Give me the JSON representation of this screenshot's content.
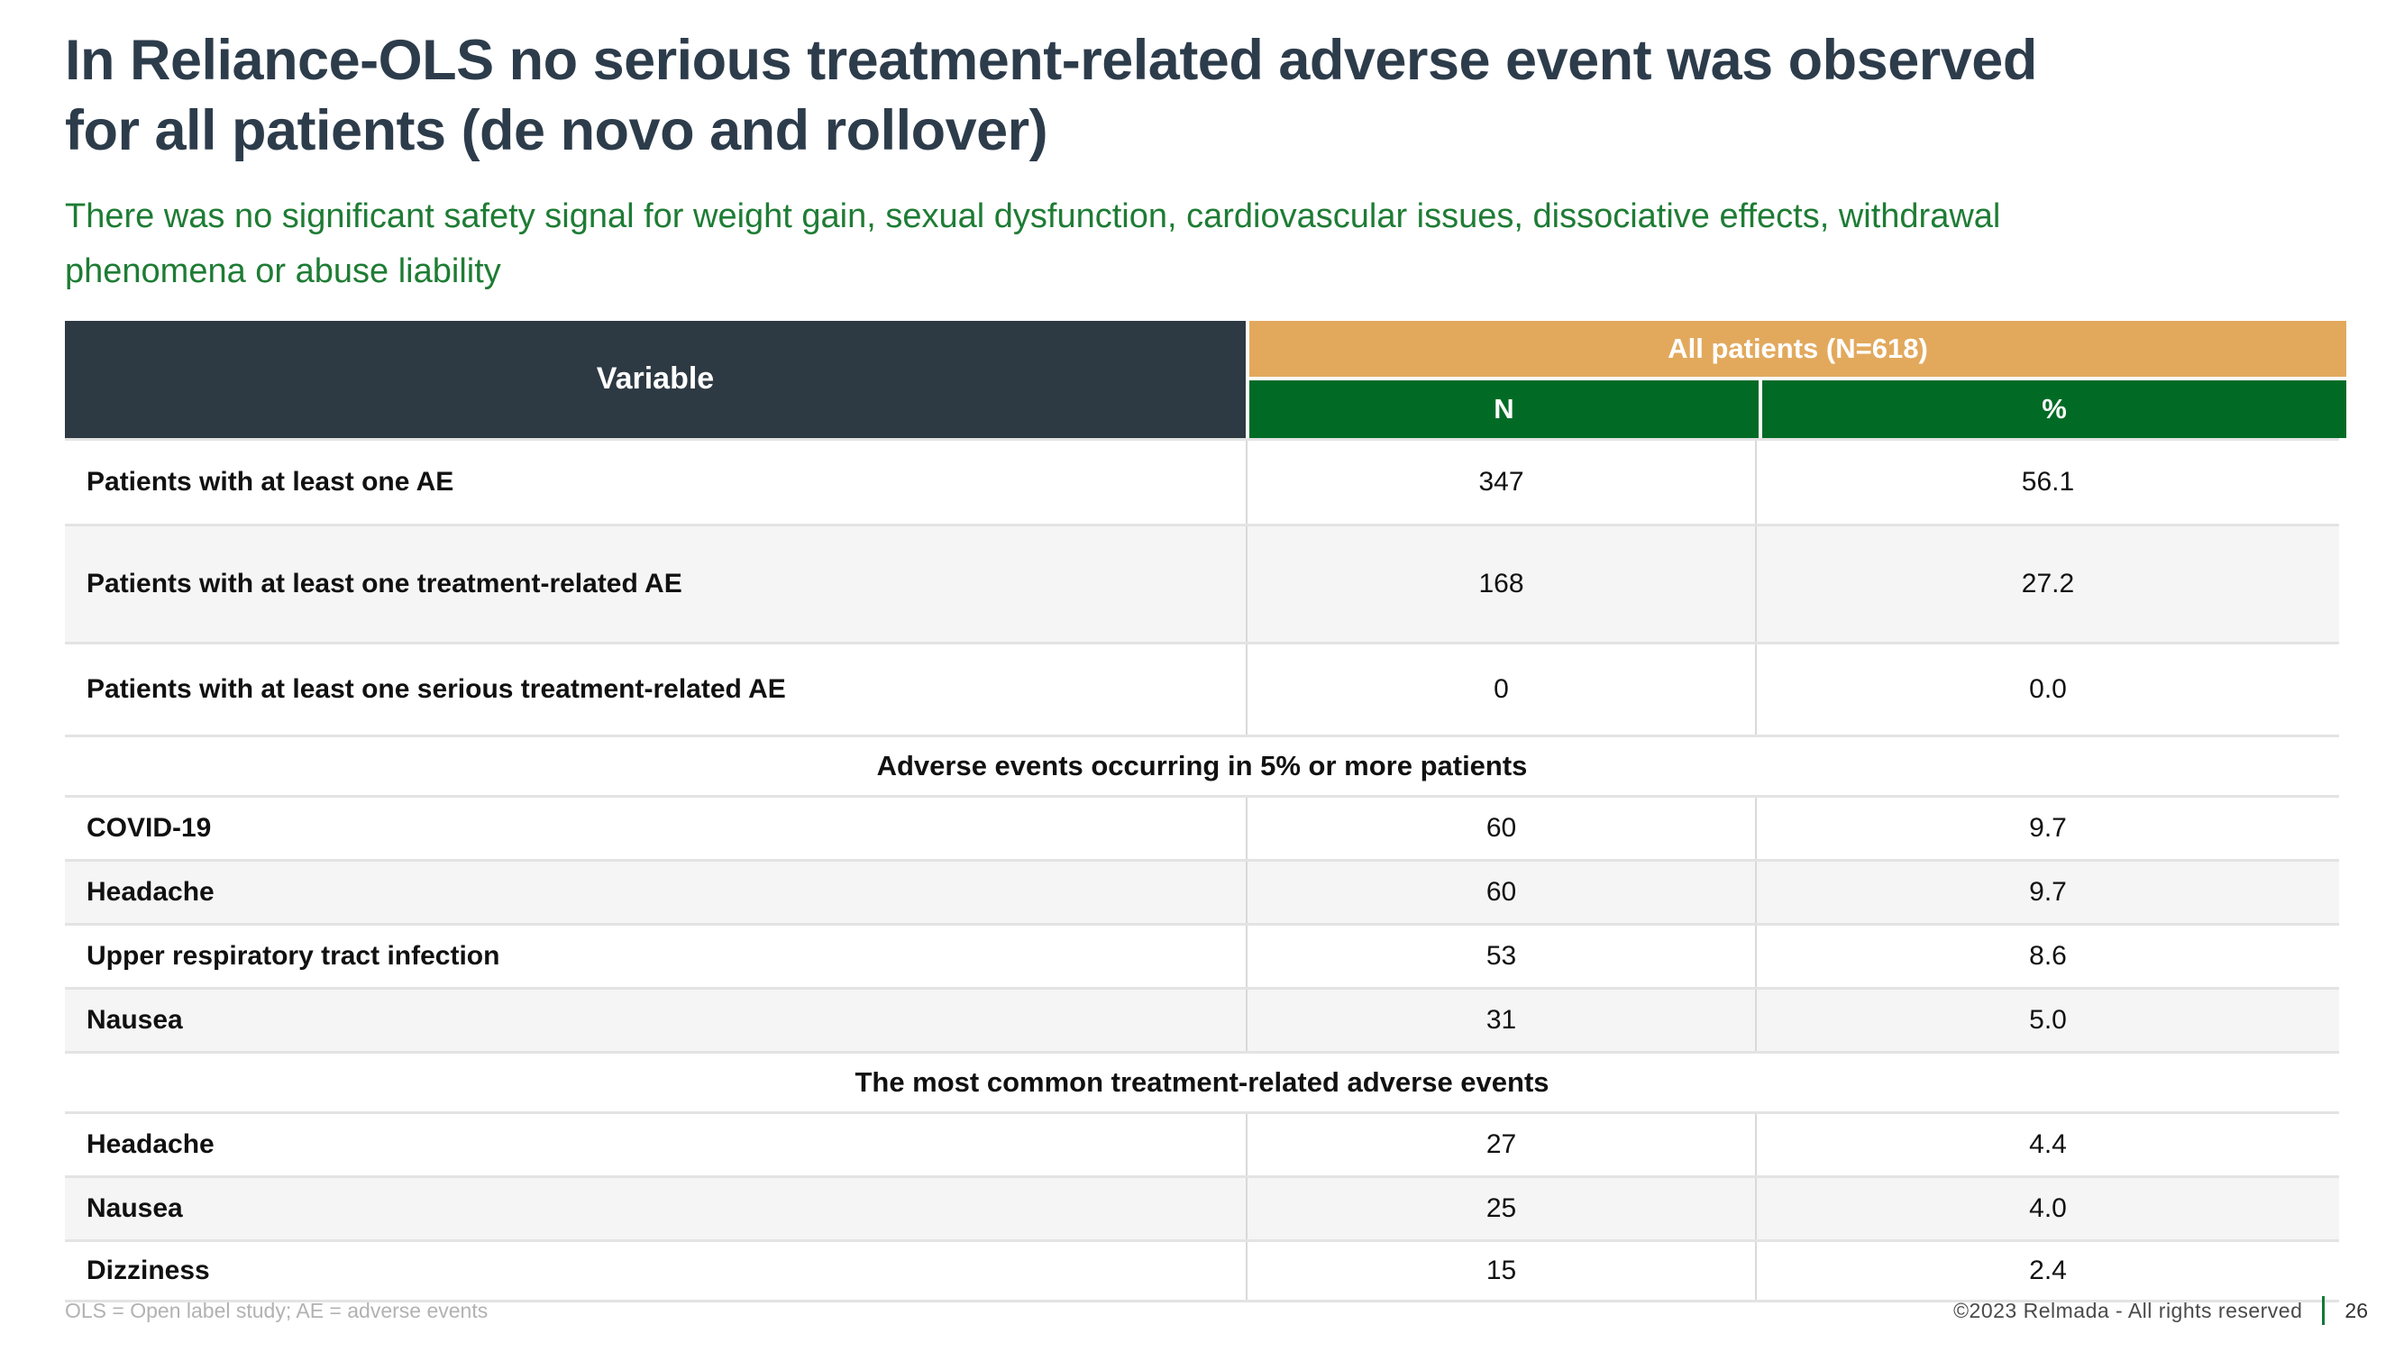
{
  "slide": {
    "title_lines": [
      "In Reliance-OLS no serious treatment-related adverse event was observed",
      "for all patients (de novo and rollover)"
    ],
    "subtitle_lines": [
      "There was no significant safety signal for weight gain, sexual dysfunction, cardiovascular issues, dissociative effects, withdrawal",
      "phenomena or abuse liability"
    ]
  },
  "table": {
    "header": {
      "variable": "Variable",
      "group": "All patients (N=618)",
      "col_n": "N",
      "col_pct": "%"
    },
    "rows": [
      {
        "type": "data",
        "label": "Patients with at least one AE",
        "n": "347",
        "pct": "56.1"
      },
      {
        "type": "data",
        "label": "Patients with at least one treatment-related AE",
        "n": "168",
        "pct": "27.2"
      },
      {
        "type": "data",
        "label": "Patients with at least one serious treatment-related AE",
        "n": "0",
        "pct": "0.0"
      },
      {
        "type": "section",
        "title": "Adverse events occurring in 5% or more patients"
      },
      {
        "type": "data",
        "label": "COVID-19",
        "n": "60",
        "pct": "9.7"
      },
      {
        "type": "data",
        "label": "Headache",
        "n": "60",
        "pct": "9.7"
      },
      {
        "type": "data",
        "label": "Upper respiratory tract infection",
        "n": "53",
        "pct": "8.6"
      },
      {
        "type": "data",
        "label": "Nausea",
        "n": "31",
        "pct": "5.0"
      },
      {
        "type": "section",
        "title": "The most common treatment-related adverse events"
      },
      {
        "type": "data",
        "label": "Headache",
        "n": "27",
        "pct": "4.4"
      },
      {
        "type": "data",
        "label": "Nausea",
        "n": "25",
        "pct": "4.0"
      },
      {
        "type": "data",
        "label": "Dizziness",
        "n": "15",
        "pct": "2.4"
      }
    ]
  },
  "footer": {
    "note": "OLS = Open label study; AE = adverse events",
    "copyright": "©2023 Relmada - All rights reserved",
    "page": "26"
  },
  "colors": {
    "title_color": "#2d3c4b",
    "subtitle_green": "#1e7c34",
    "header_dark": "#2d3943",
    "header_orange": "#e2a95d",
    "header_green": "#016b26",
    "footer_bar_green": "#0f7a38"
  }
}
